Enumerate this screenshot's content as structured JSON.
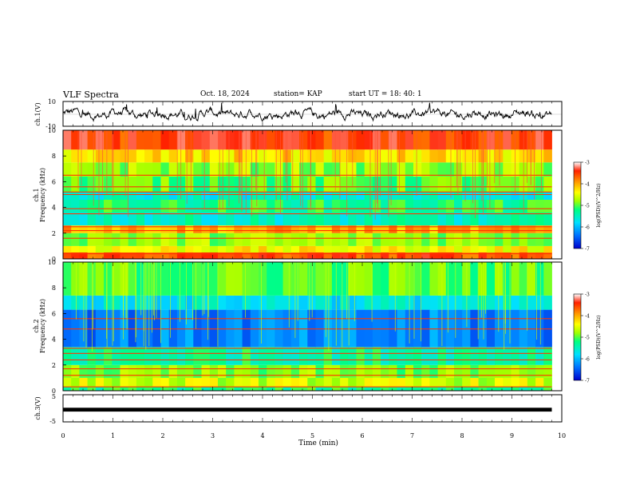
{
  "header": {
    "title": "VLF Spectra",
    "date": "Oct. 18, 2024",
    "station": "station= KAP",
    "start": "start  UT =   18: 40: 1"
  },
  "chart_data": [
    {
      "type": "line",
      "name": "ch1-waveform",
      "ylabel": "ch.1(V)",
      "ylim": [
        -10,
        10
      ],
      "yticks": [
        "10",
        "-10"
      ],
      "xlim": [
        0,
        10
      ],
      "data_extent_min": 9.8,
      "approx_baseline_v": 0,
      "approx_excursion_v": [
        -6,
        9
      ]
    },
    {
      "type": "heatmap",
      "name": "ch1-spectrogram",
      "ylabel": "ch.1\nFrequency (kHz)",
      "xlim": [
        0,
        10
      ],
      "ylim": [
        0,
        10
      ],
      "yticks": [
        "0",
        "2",
        "4",
        "6",
        "8",
        "10"
      ],
      "data_extent_min": 9.8,
      "colorbar": {
        "label": "log(PSD)(V^2/Hz)",
        "range": [
          -7,
          -3
        ],
        "ticks": [
          "-3",
          "-4",
          "-5",
          "-6",
          "-7"
        ]
      },
      "approx_log_psd_profile": [
        {
          "f": [
            0.0,
            0.5
          ],
          "v": -3.6
        },
        {
          "f": [
            0.5,
            1.0
          ],
          "v": -4.4
        },
        {
          "f": [
            1.0,
            2.0
          ],
          "v": -4.8
        },
        {
          "f": [
            2.0,
            2.6
          ],
          "v": -4.0
        },
        {
          "f": [
            2.6,
            3.6
          ],
          "v": -5.5
        },
        {
          "f": [
            3.6,
            4.6
          ],
          "v": -5.2
        },
        {
          "f": [
            4.6,
            5.2
          ],
          "v": -5.6
        },
        {
          "f": [
            5.2,
            6.4
          ],
          "v": -5.0
        },
        {
          "f": [
            6.4,
            7.5
          ],
          "v": -4.8
        },
        {
          "f": [
            7.5,
            8.5
          ],
          "v": -4.3
        },
        {
          "f": [
            8.5,
            10.0
          ],
          "v": -3.5
        }
      ],
      "line_tones_khz": [
        0.4,
        1.6,
        2.2,
        2.5,
        3.5,
        3.9,
        5.0,
        5.2,
        5.6,
        6.5
      ]
    },
    {
      "type": "heatmap",
      "name": "ch2-spectrogram",
      "ylabel": "ch.2\nFrequency (kHz)",
      "xlim": [
        0,
        10
      ],
      "ylim": [
        0,
        10
      ],
      "yticks": [
        "0",
        "2",
        "4",
        "6",
        "8",
        "10"
      ],
      "data_extent_min": 9.8,
      "colorbar": {
        "label": "log(PSD)(V^2/Hz)",
        "range": [
          -7,
          -3
        ],
        "ticks": [
          "-3",
          "-4",
          "-5",
          "-6",
          "-7"
        ]
      },
      "approx_log_psd_profile": [
        {
          "f": [
            0.0,
            0.3
          ],
          "v": -5.2
        },
        {
          "f": [
            0.3,
            1.0
          ],
          "v": -4.6
        },
        {
          "f": [
            1.0,
            2.0
          ],
          "v": -4.9
        },
        {
          "f": [
            2.0,
            3.4
          ],
          "v": -5.3
        },
        {
          "f": [
            3.4,
            6.3
          ],
          "v": -6.3
        },
        {
          "f": [
            6.3,
            7.4
          ],
          "v": -5.7
        },
        {
          "f": [
            7.4,
            10.0
          ],
          "v": -5.0
        }
      ],
      "line_tones_khz": [
        0.3,
        1.2,
        1.7,
        2.4,
        2.9,
        3.3,
        4.8,
        5.6
      ]
    },
    {
      "type": "line",
      "name": "ch3-waveform",
      "ylabel": "ch.3(V)",
      "ylim": [
        -5,
        5
      ],
      "yticks": [
        "5",
        "-5"
      ],
      "xlim": [
        0,
        10
      ],
      "xticks": [
        "0",
        "1",
        "2",
        "3",
        "4",
        "5",
        "6",
        "7",
        "8",
        "9",
        "10"
      ],
      "xlabel": "Time (min)",
      "data_extent_min": 9.8,
      "approx_band_v": [
        -1.2,
        0.2
      ]
    }
  ],
  "colors": {
    "axes": "#000000",
    "colormap": [
      "#0000cc",
      "#0070ff",
      "#00e0ff",
      "#00ff80",
      "#a0ff00",
      "#ffff00",
      "#ff9000",
      "#ff2000",
      "#ffffff"
    ]
  }
}
